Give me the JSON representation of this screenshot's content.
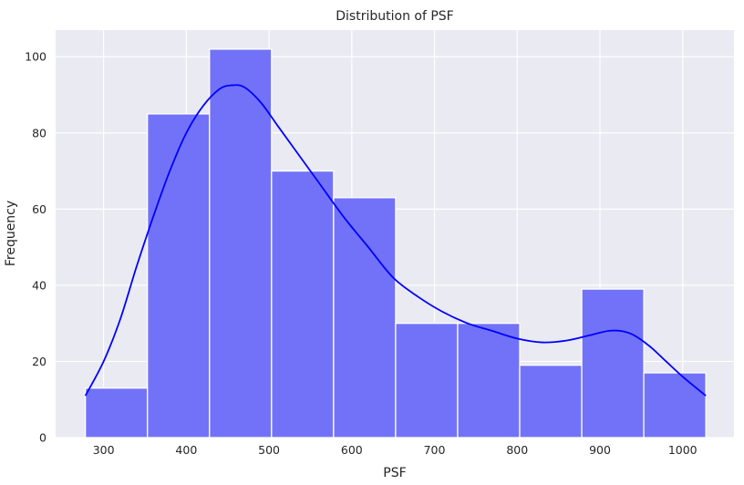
{
  "chart_data": {
    "type": "bar",
    "subtype": "histogram_with_kde",
    "title": "Distribution of PSF",
    "xlabel": "PSF",
    "ylabel": "Frequency",
    "xlim": [
      242,
      1062
    ],
    "ylim": [
      0,
      107
    ],
    "x_ticks": [
      300,
      400,
      500,
      600,
      700,
      800,
      900,
      1000
    ],
    "y_ticks": [
      0,
      20,
      40,
      60,
      80,
      100
    ],
    "grid": true,
    "bar_color": "#7272f8",
    "bar_edge_color": "#ffffff",
    "kde_color": "#0000ff",
    "background": "#eaeaf2",
    "bins": [
      {
        "start": 278,
        "end": 353,
        "count": 13
      },
      {
        "start": 353,
        "end": 428,
        "count": 85
      },
      {
        "start": 428,
        "end": 503,
        "count": 102
      },
      {
        "start": 503,
        "end": 578,
        "count": 70
      },
      {
        "start": 578,
        "end": 653,
        "count": 63
      },
      {
        "start": 653,
        "end": 728,
        "count": 30
      },
      {
        "start": 728,
        "end": 803,
        "count": 30
      },
      {
        "start": 803,
        "end": 878,
        "count": 19
      },
      {
        "start": 878,
        "end": 953,
        "count": 39
      },
      {
        "start": 953,
        "end": 1028,
        "count": 17
      }
    ],
    "kde": {
      "x": [
        278,
        300,
        320,
        340,
        360,
        380,
        400,
        420,
        440,
        455,
        470,
        490,
        510,
        530,
        560,
        590,
        620,
        650,
        680,
        710,
        740,
        770,
        800,
        830,
        860,
        890,
        910,
        925,
        940,
        960,
        980,
        1000,
        1028
      ],
      "y": [
        11,
        20,
        31,
        45,
        58,
        70,
        80,
        87,
        91.5,
        92.5,
        92,
        88,
        82,
        76,
        67,
        58,
        50,
        42,
        37,
        33,
        30,
        28,
        26,
        25,
        25.5,
        27,
        28,
        28,
        27,
        24,
        20,
        16,
        11
      ]
    }
  }
}
